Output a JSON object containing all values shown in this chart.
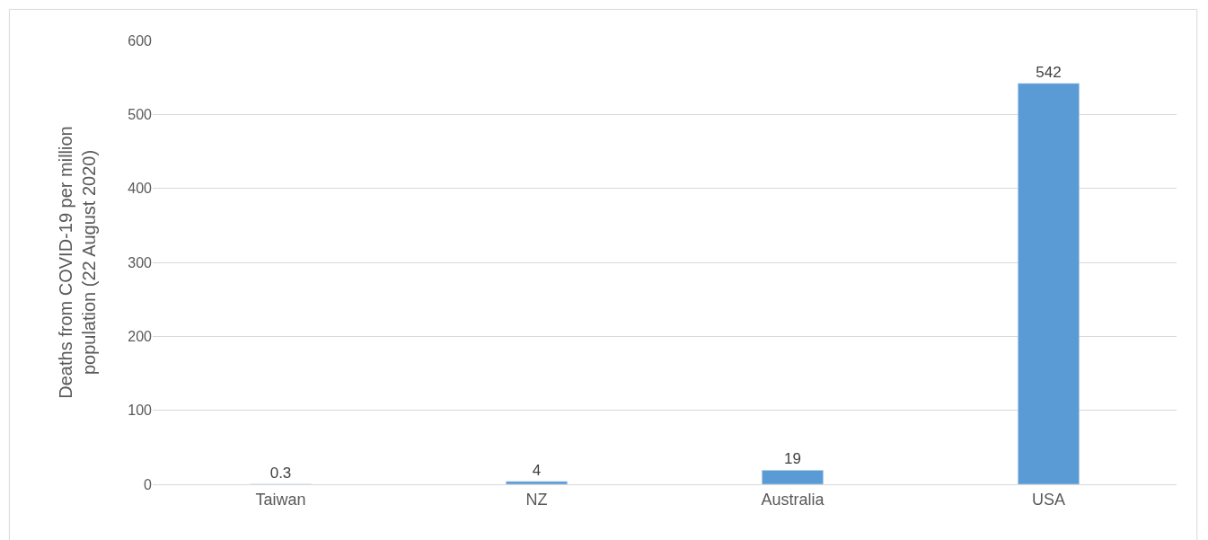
{
  "chart_data": {
    "type": "bar",
    "ylabel": "Deaths from COVID-19 per million\npopulation (22 August 2020)",
    "categories": [
      "Taiwan",
      "NZ",
      "Australia",
      "USA"
    ],
    "values": [
      0.3,
      4,
      19,
      542
    ],
    "color": "#5b9bd5",
    "ylim": [
      0,
      600
    ],
    "yticks": [
      0,
      100,
      200,
      300,
      400,
      500,
      600
    ],
    "grid": "y",
    "data_labels": true
  }
}
